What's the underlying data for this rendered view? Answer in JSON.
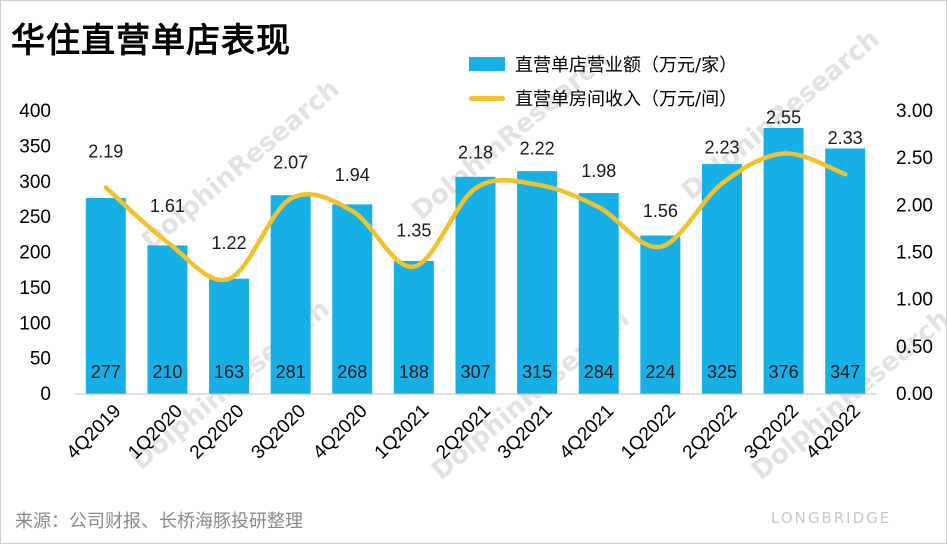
{
  "page": {
    "title": "华住直营单店表现",
    "source": "来源：公司财报、长桥海豚投研整理",
    "brand": "LONGBRIDGE",
    "watermark": "DolphinResearch"
  },
  "legend": {
    "bar_label": "直营单店营业额（万元/家）",
    "line_label": "直营单房间收入（万元/间）"
  },
  "colors": {
    "bar": "#16b0e6",
    "line": "#f2c12e"
  },
  "chart_data": {
    "type": "bar+line",
    "title": "华住直营单店表现",
    "categories": [
      "4Q2019",
      "1Q2020",
      "2Q2020",
      "3Q2020",
      "4Q2020",
      "1Q2021",
      "2Q2021",
      "3Q2021",
      "4Q2021",
      "1Q2022",
      "2Q2022",
      "3Q2022",
      "4Q2022"
    ],
    "series": [
      {
        "name": "直营单店营业额（万元/家）",
        "type": "bar",
        "axis": "left",
        "values": [
          277,
          210,
          163,
          281,
          268,
          188,
          307,
          315,
          284,
          224,
          325,
          376,
          347
        ]
      },
      {
        "name": "直营单房间收入（万元/间）",
        "type": "line",
        "axis": "right",
        "values": [
          2.19,
          1.61,
          1.22,
          2.07,
          1.94,
          1.35,
          2.18,
          2.22,
          1.98,
          1.56,
          2.23,
          2.55,
          2.33
        ]
      }
    ],
    "y_left": {
      "min": 0,
      "max": 400,
      "ticks": [
        "0",
        "50",
        "100",
        "150",
        "200",
        "250",
        "300",
        "350",
        "400"
      ]
    },
    "y_right": {
      "min": 0,
      "max": 3,
      "ticks": [
        "0.00",
        "0.50",
        "1.00",
        "1.50",
        "2.00",
        "2.50",
        "3.00"
      ]
    },
    "legend_position": "top-right",
    "grid": false
  }
}
